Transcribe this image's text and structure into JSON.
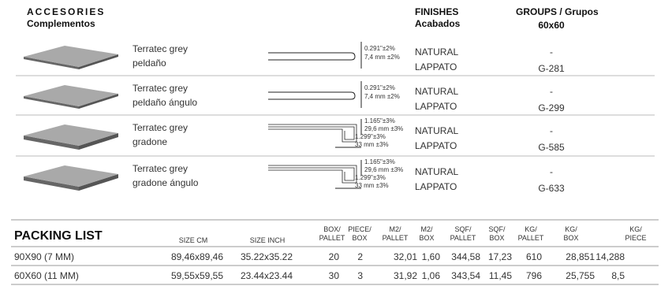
{
  "header": {
    "accessories": "ACCESORIES",
    "accessories_sub": "Complementos",
    "finishes": "FINISHES",
    "finishes_sub": "Acabados",
    "groups": "GROUPS / Grupos",
    "groups_sub": "60x60"
  },
  "products": [
    {
      "name": [
        "Terratec grey",
        "peldaño"
      ],
      "dims": [
        "0.291\"±2%",
        "7,4 mm ±2%"
      ],
      "finishes": [
        "NATURAL",
        "LAPPATO"
      ],
      "groups": [
        "-",
        "G-281"
      ]
    },
    {
      "name": [
        "Terratec grey",
        "peldaño ángulo"
      ],
      "dims": [
        "0.291\"±2%",
        "7,4 mm ±2%"
      ],
      "finishes": [
        "NATURAL",
        "LAPPATO"
      ],
      "groups": [
        "-",
        "G-299"
      ]
    },
    {
      "name": [
        "Terratec grey",
        "gradone"
      ],
      "dims": [
        "1.165\"±3%",
        "29,6 mm ±3%",
        "1.299\"±3%",
        "33 mm ±3%"
      ],
      "finishes": [
        "NATURAL",
        "LAPPATO"
      ],
      "groups": [
        "-",
        "G-585"
      ]
    },
    {
      "name": [
        "Terratec grey",
        "gradone ángulo"
      ],
      "dims": [
        "1.165\"±3%",
        "29,6 mm ±3%",
        "1.299\"±3%",
        "33 mm ±3%"
      ],
      "finishes": [
        "NATURAL",
        "LAPPATO"
      ],
      "groups": [
        "-",
        "G-633"
      ]
    }
  ],
  "packing": {
    "title": "PACKING LIST",
    "columns": [
      [
        "SIZE CM"
      ],
      [
        "SIZE INCH"
      ],
      [
        "BOX/",
        "PALLET"
      ],
      [
        "PIECE/",
        "BOX"
      ],
      [
        "M2/",
        "PALLET"
      ],
      [
        "M2/",
        "BOX"
      ],
      [
        "SQF/",
        "PALLET"
      ],
      [
        "SQF/",
        "BOX"
      ],
      [
        "KG/",
        "PALLET"
      ],
      [
        "KG/",
        "BOX"
      ],
      [
        "KG/",
        "PIECE"
      ]
    ],
    "rows": [
      [
        "90X90 (7 MM)",
        "89,46x89,46",
        "35.22x35.22",
        "20",
        "2",
        "32,01",
        "1,60",
        "344,58",
        "17,23",
        "610",
        "28,851",
        "14,288"
      ],
      [
        "60X60 (11 MM)",
        "59,55x59,55",
        "23.44x23.44",
        "30",
        "3",
        "31,92",
        "1,06",
        "343,54",
        "11,45",
        "796",
        "25,755",
        "8,5"
      ]
    ]
  }
}
